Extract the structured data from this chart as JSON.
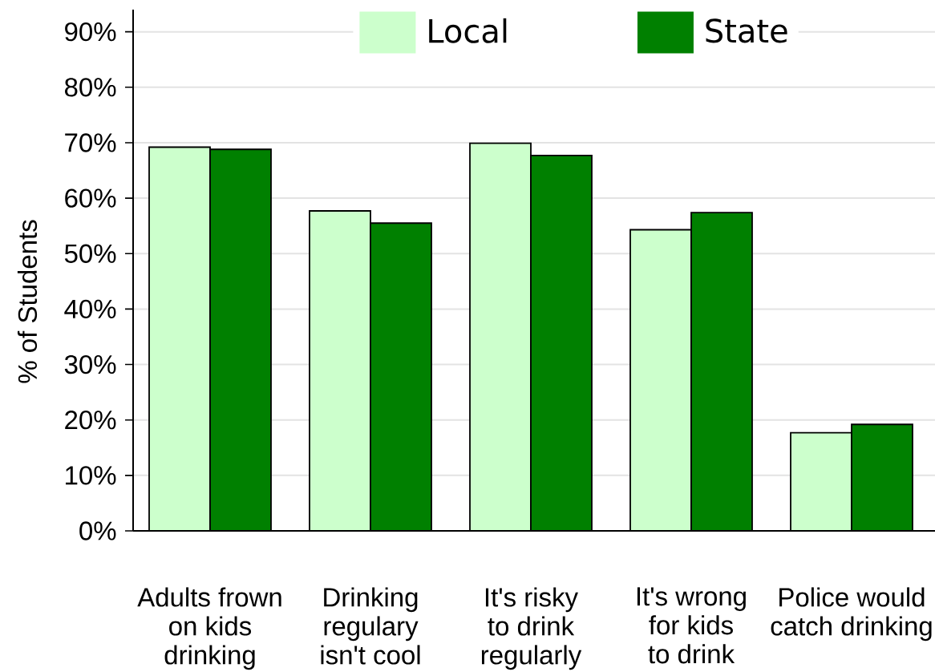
{
  "chart_data": {
    "type": "bar",
    "ylabel": "% of Students",
    "categories": [
      "Adults frown on kids drinking",
      "Drinking regulary isn't cool",
      "It's risky to drink regularly",
      "It's wrong for kids to drink",
      "Police would catch drinking"
    ],
    "series": [
      {
        "name": "Local",
        "color": "#ccffcc",
        "values": [
          69.2,
          57.7,
          69.9,
          54.3,
          17.7
        ]
      },
      {
        "name": "State",
        "color": "#008000",
        "values": [
          68.8,
          55.5,
          67.7,
          57.4,
          19.2
        ]
      }
    ],
    "ylim": [
      0,
      94
    ],
    "yticks": [
      {
        "value": 0,
        "label": "0%"
      },
      {
        "value": 10,
        "label": "10%"
      },
      {
        "value": 20,
        "label": "20%"
      },
      {
        "value": 30,
        "label": "30%"
      },
      {
        "value": 40,
        "label": "40%"
      },
      {
        "value": 50,
        "label": "50%"
      },
      {
        "value": 60,
        "label": "60%"
      },
      {
        "value": 70,
        "label": "70%"
      },
      {
        "value": 80,
        "label": "80%"
      },
      {
        "value": 90,
        "label": "90%"
      }
    ],
    "grid": "y",
    "legend": "top"
  }
}
